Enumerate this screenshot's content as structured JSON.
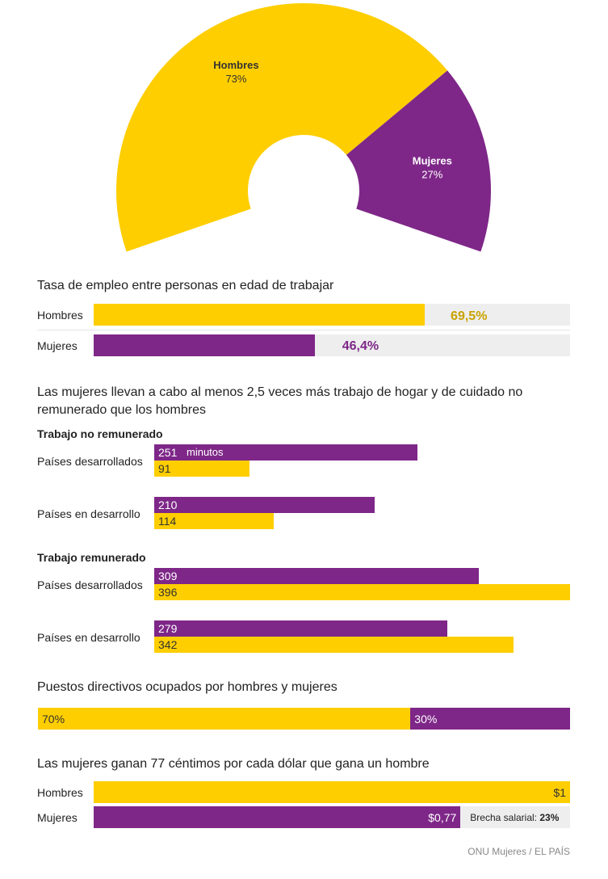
{
  "colors": {
    "men": "#FECE00",
    "women": "#7E2788",
    "track": "#EEEEEE",
    "yellow_text": "#C8A200"
  },
  "chart_data": [
    {
      "type": "pie",
      "categories": [
        "Hombres",
        "Mujeres"
      ],
      "values": [
        73,
        27
      ],
      "labels": [
        "Hombres",
        "Mujeres"
      ],
      "value_labels": [
        "73%",
        "27%"
      ]
    },
    {
      "type": "bar",
      "title": "Tasa de empleo entre personas en edad de trabajar",
      "categories": [
        "Hombres",
        "Mujeres"
      ],
      "values": [
        69.5,
        46.4
      ],
      "value_labels": [
        "69,5%",
        "46,4%"
      ],
      "xlim": [
        0,
        100
      ]
    },
    {
      "type": "bar",
      "title": "Las mujeres llevan a cabo al menos 2,5 veces más trabajo de hogar y de cuidado no remunerado que los hombres",
      "unit_label": "minutos",
      "xlim": [
        0,
        396
      ],
      "groups": [
        {
          "heading": "Trabajo no remunerado",
          "rows": [
            {
              "label": "Países desarrollados",
              "women": 251,
              "men": 91
            },
            {
              "label": "Países en desarrollo",
              "women": 210,
              "men": 114
            }
          ]
        },
        {
          "heading": "Trabajo remunerado",
          "rows": [
            {
              "label": "Países desarrollados",
              "women": 309,
              "men": 396
            },
            {
              "label": "Países en desarrollo",
              "women": 279,
              "men": 342
            }
          ]
        }
      ]
    },
    {
      "type": "bar",
      "title": "Puestos directivos ocupados por hombres y mujeres",
      "categories": [
        "Hombres",
        "Mujeres"
      ],
      "values": [
        70,
        30
      ],
      "value_labels": [
        "70%",
        "30%"
      ]
    },
    {
      "type": "bar",
      "title": "Las mujeres ganan 77 céntimos por cada dólar que gana un hombre",
      "categories": [
        "Hombres",
        "Mujeres"
      ],
      "values": [
        1,
        0.77
      ],
      "value_labels": [
        "$1",
        "$0,77"
      ],
      "gap_label": "Brecha salarial:",
      "gap_value": "23%"
    }
  ],
  "source": "ONU Mujeres / EL PAÍS"
}
